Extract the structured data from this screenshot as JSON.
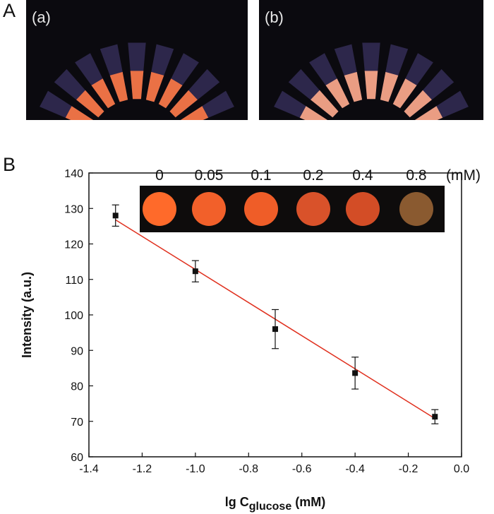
{
  "panel_a": {
    "letter": "A",
    "photos": [
      {
        "label": "(a)",
        "tone": "#ff7a45"
      },
      {
        "label": "(b)",
        "tone": "#ffab8a"
      }
    ]
  },
  "panel_b": {
    "letter": "B",
    "inset": {
      "concentrations": [
        "0",
        "0.05",
        "0.1",
        "0.2",
        "0.4",
        "0.8"
      ],
      "unit": "(mM)",
      "spot_colors": [
        "#ff6a2a",
        "#f2602a",
        "#ef5d28",
        "#d9522a",
        "#d34d26",
        "#8a5a30"
      ]
    }
  },
  "chart_data": {
    "type": "scatter",
    "x": [
      -1.3,
      -1.0,
      -0.7,
      -0.4,
      -0.1
    ],
    "y": [
      128.0,
      112.3,
      96.0,
      83.6,
      71.3
    ],
    "error": [
      3.0,
      3.0,
      5.5,
      4.5,
      2.0
    ],
    "fit_line": {
      "x": [
        -1.3,
        -0.1
      ],
      "y": [
        126.8,
        70.8
      ],
      "color": "#e0301e"
    },
    "xlim": [
      -1.4,
      0.0
    ],
    "ylim": [
      60,
      140
    ],
    "xticks": [
      "-1.4",
      "-1.2",
      "-1.0",
      "-0.8",
      "-0.6",
      "-0.4",
      "-0.2",
      "0.0"
    ],
    "yticks": [
      "60",
      "70",
      "80",
      "90",
      "100",
      "110",
      "120",
      "130",
      "140"
    ],
    "xlabel_main": "lg C",
    "xlabel_sub": "glucose",
    "xlabel_unit": " (mM)",
    "ylabel": "Intensity (a.u.)",
    "marker_color": "#111111"
  }
}
